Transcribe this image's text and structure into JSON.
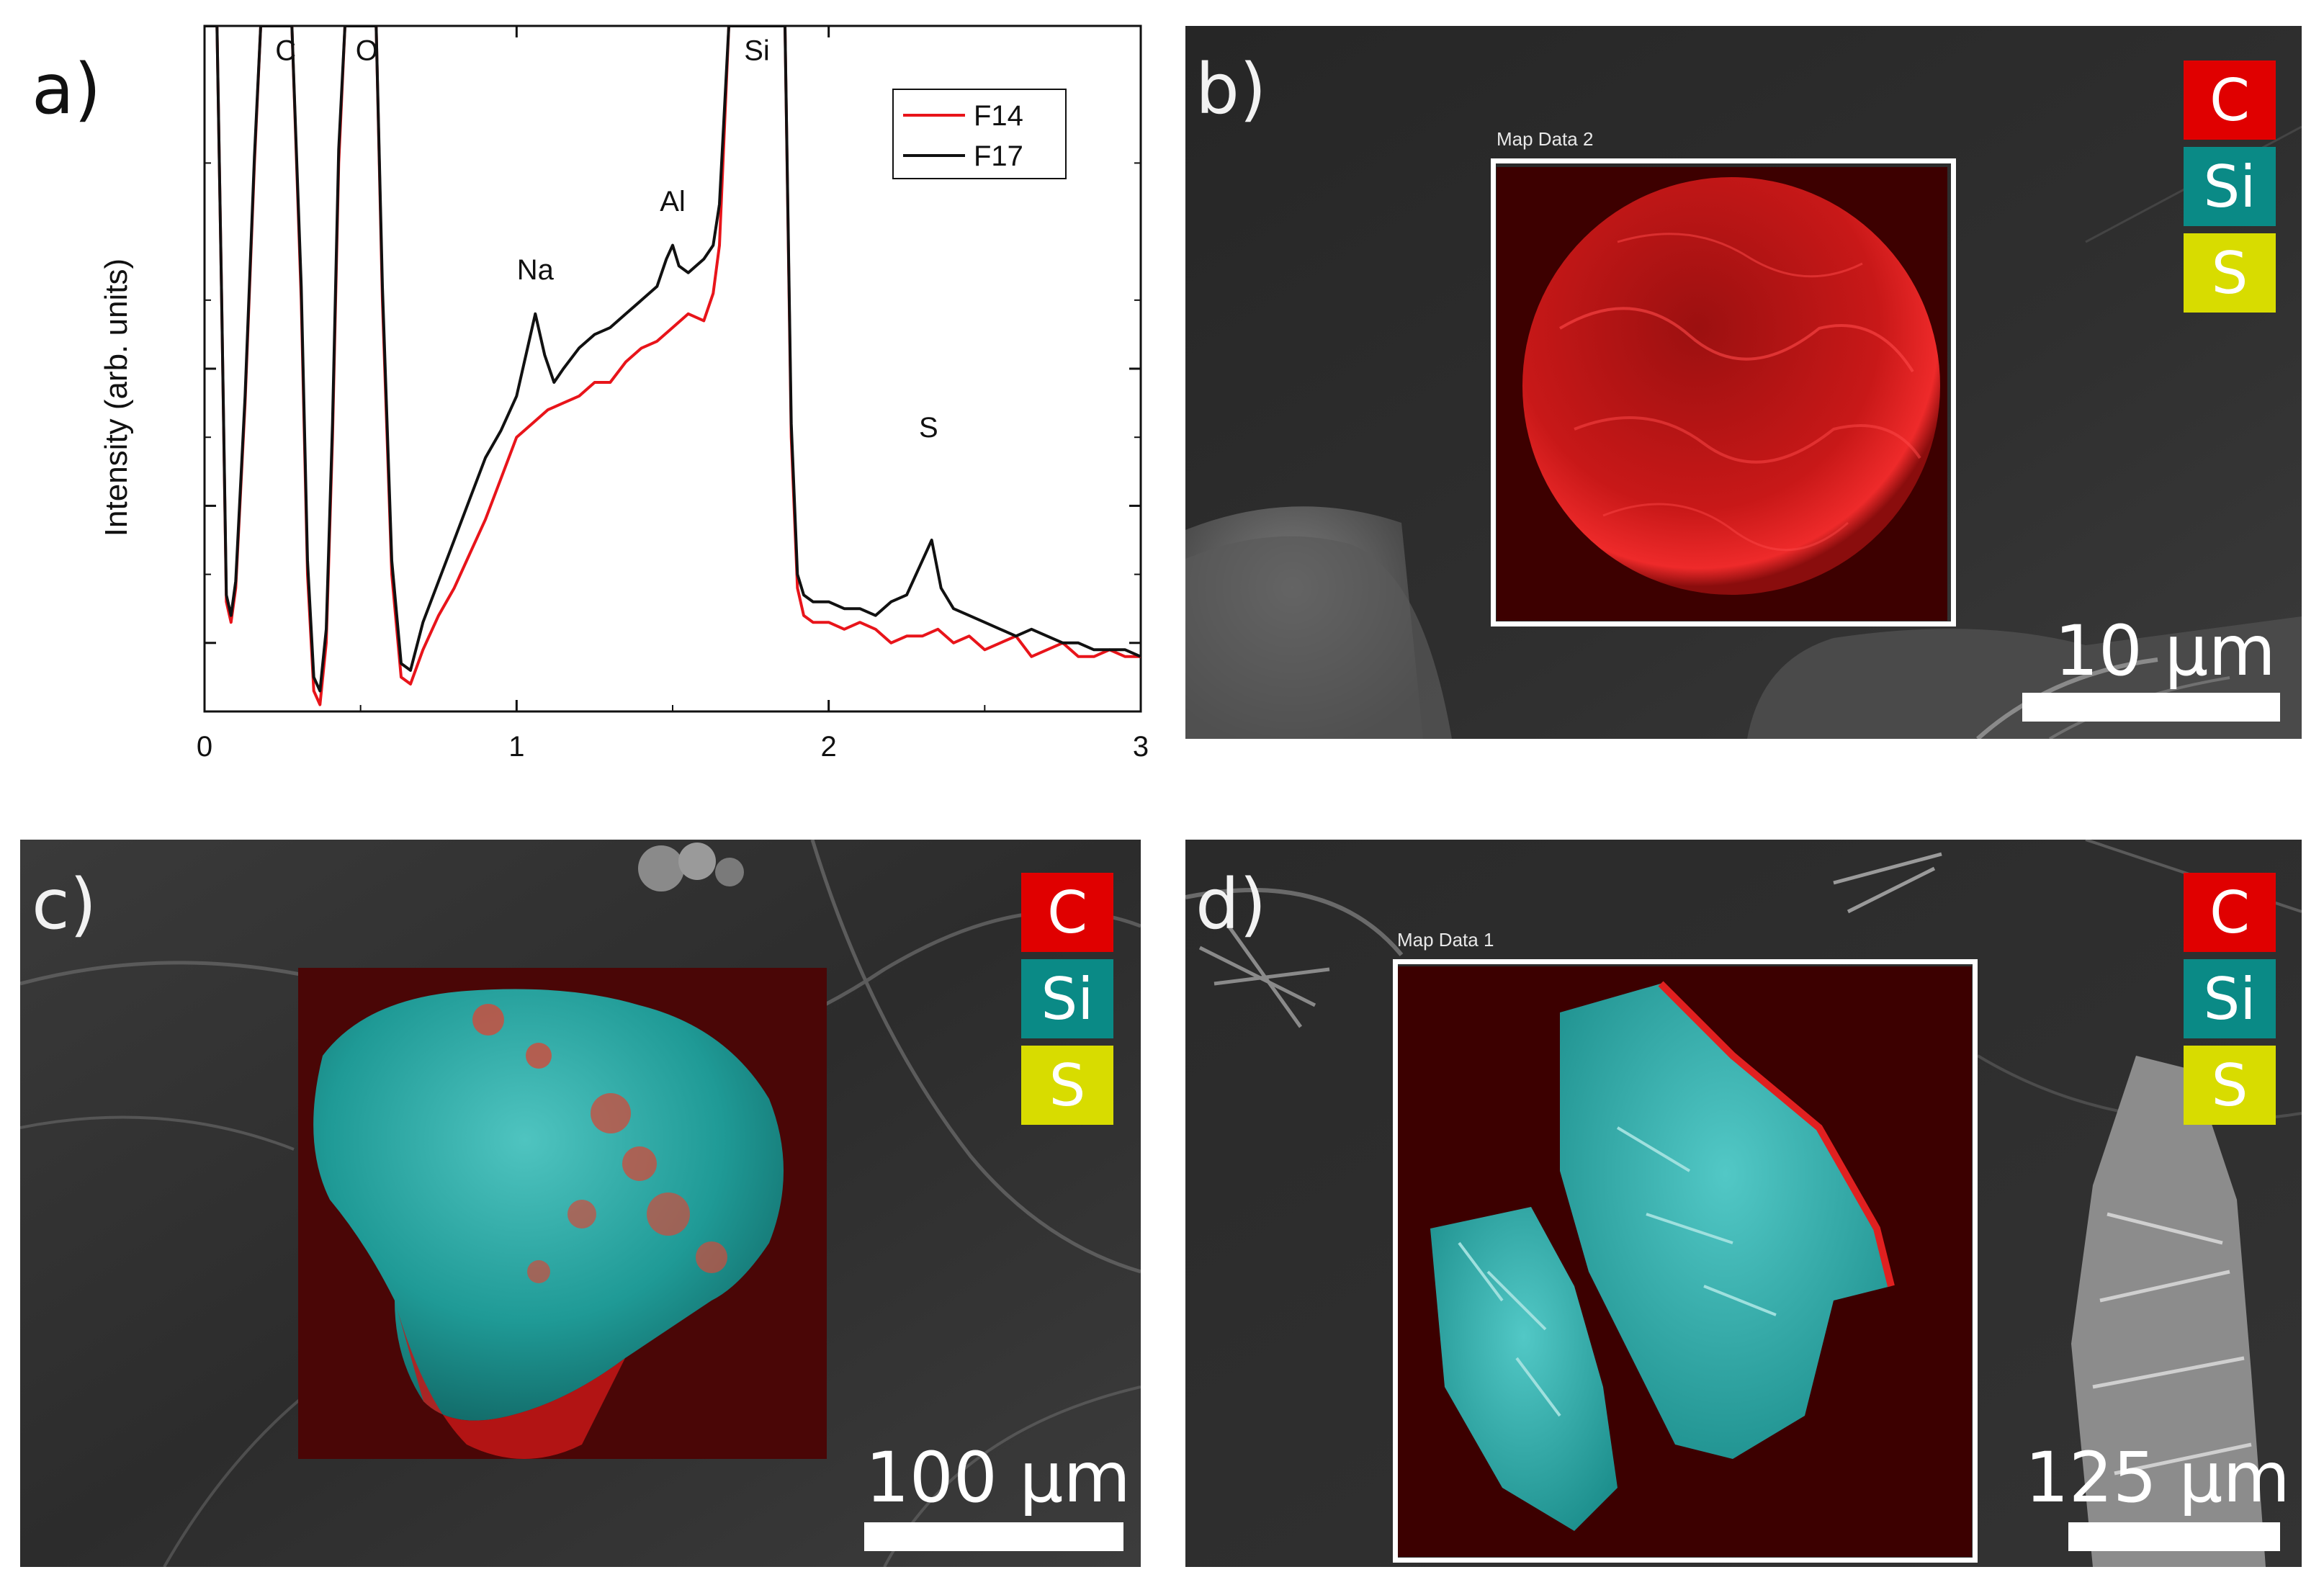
{
  "panels": {
    "a": {
      "letter": "a)"
    },
    "b": {
      "letter": "b)",
      "map_label": "Map Data 2",
      "scale_label": "10 µm",
      "legend": [
        "C",
        "Si",
        "S"
      ]
    },
    "c": {
      "letter": "c)",
      "scale_label": "100 µm",
      "legend": [
        "C",
        "Si",
        "S"
      ]
    },
    "d": {
      "letter": "d)",
      "map_label": "Map Data 1",
      "scale_label": "125 µm",
      "legend": [
        "C",
        "Si",
        "S"
      ]
    }
  },
  "legend_colors": {
    "C": "#e00000",
    "Si": "#0a8a86",
    "S": "#d8dc00"
  },
  "chart_data": {
    "type": "line",
    "title": "",
    "xlabel": "",
    "ylabel": "Intensity (arb. units)",
    "xlim": [
      0,
      3
    ],
    "ylim": [
      0,
      100
    ],
    "x_ticks": [
      0,
      1,
      2,
      3
    ],
    "x_tick_labels": [
      "0",
      "1",
      "2",
      "3"
    ],
    "y_ticks": [
      10,
      30,
      50
    ],
    "legend": {
      "position": "top-right",
      "entries": [
        "F14",
        "F17"
      ]
    },
    "peak_labels": [
      {
        "text": "C",
        "x": 0.26,
        "y": 95
      },
      {
        "text": "O",
        "x": 0.52,
        "y": 95
      },
      {
        "text": "Na",
        "x": 1.06,
        "y": 63
      },
      {
        "text": "Al",
        "x": 1.5,
        "y": 73
      },
      {
        "text": "Si",
        "x": 1.77,
        "y": 95
      },
      {
        "text": "S",
        "x": 2.32,
        "y": 40
      }
    ],
    "series": [
      {
        "name": "F14",
        "color": "#e8141a",
        "x": [
          0.0,
          0.04,
          0.055,
          0.07,
          0.085,
          0.1,
          0.13,
          0.16,
          0.18,
          0.2,
          0.28,
          0.31,
          0.33,
          0.35,
          0.37,
          0.39,
          0.41,
          0.43,
          0.45,
          0.55,
          0.57,
          0.6,
          0.63,
          0.66,
          0.7,
          0.75,
          0.8,
          0.85,
          0.9,
          0.95,
          1.0,
          1.05,
          1.1,
          1.15,
          1.2,
          1.25,
          1.3,
          1.35,
          1.4,
          1.45,
          1.5,
          1.55,
          1.6,
          1.63,
          1.65,
          1.68,
          1.7,
          1.86,
          1.88,
          1.9,
          1.92,
          1.95,
          2.0,
          2.05,
          2.1,
          2.15,
          2.2,
          2.25,
          2.3,
          2.35,
          2.4,
          2.45,
          2.5,
          2.55,
          2.6,
          2.65,
          2.7,
          2.75,
          2.8,
          2.85,
          2.9,
          2.95,
          3.0
        ],
        "y": [
          100,
          100,
          60,
          16,
          13,
          18,
          45,
          80,
          100,
          100,
          100,
          60,
          20,
          3,
          1,
          10,
          40,
          80,
          100,
          100,
          60,
          20,
          5,
          4,
          9,
          14,
          18,
          23,
          28,
          34,
          40,
          42,
          44,
          45,
          46,
          48,
          48,
          51,
          53,
          54,
          56,
          58,
          57,
          61,
          68,
          100,
          100,
          100,
          40,
          18,
          14,
          13,
          13,
          12,
          13,
          12,
          10,
          11,
          11,
          12,
          10,
          11,
          9,
          10,
          11,
          8,
          9,
          10,
          8,
          8,
          9,
          8,
          8
        ]
      },
      {
        "name": "F17",
        "color": "#111111",
        "x": [
          0.0,
          0.04,
          0.055,
          0.07,
          0.085,
          0.1,
          0.13,
          0.16,
          0.18,
          0.2,
          0.28,
          0.31,
          0.33,
          0.35,
          0.37,
          0.39,
          0.41,
          0.43,
          0.45,
          0.55,
          0.57,
          0.6,
          0.63,
          0.66,
          0.7,
          0.75,
          0.8,
          0.85,
          0.9,
          0.95,
          1.0,
          1.03,
          1.06,
          1.09,
          1.12,
          1.15,
          1.2,
          1.25,
          1.3,
          1.35,
          1.4,
          1.45,
          1.48,
          1.5,
          1.52,
          1.55,
          1.6,
          1.63,
          1.65,
          1.68,
          1.7,
          1.86,
          1.88,
          1.9,
          1.92,
          1.95,
          2.0,
          2.05,
          2.1,
          2.15,
          2.2,
          2.25,
          2.3,
          2.33,
          2.36,
          2.4,
          2.45,
          2.5,
          2.55,
          2.6,
          2.65,
          2.7,
          2.75,
          2.8,
          2.85,
          2.9,
          2.95,
          3.0
        ],
        "y": [
          100,
          100,
          60,
          17,
          14,
          19,
          46,
          81,
          100,
          100,
          100,
          62,
          22,
          5,
          3,
          12,
          42,
          82,
          100,
          100,
          62,
          22,
          7,
          6,
          13,
          19,
          25,
          31,
          37,
          41,
          46,
          52,
          58,
          52,
          48,
          50,
          53,
          55,
          56,
          58,
          60,
          62,
          66,
          68,
          65,
          64,
          66,
          68,
          74,
          100,
          100,
          100,
          42,
          20,
          17,
          16,
          16,
          15,
          15,
          14,
          16,
          17,
          22,
          25,
          18,
          15,
          14,
          13,
          12,
          11,
          12,
          11,
          10,
          10,
          9,
          9,
          9,
          8
        ]
      }
    ]
  }
}
